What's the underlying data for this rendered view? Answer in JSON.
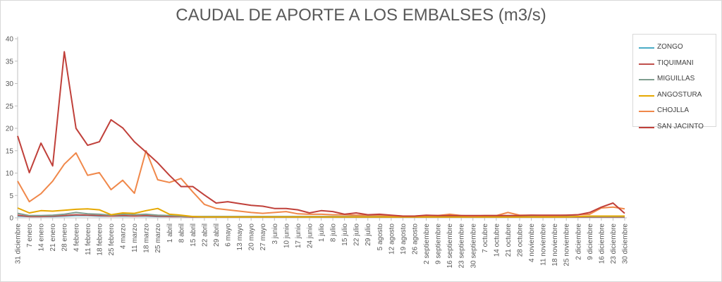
{
  "chart_data": {
    "type": "line",
    "title": "CAUDAL DE APORTE A LOS EMBALSES (m3/s)",
    "xlabel": "",
    "ylabel": "",
    "ylim": [
      0,
      40
    ],
    "y_ticks": [
      0,
      5,
      10,
      15,
      20,
      25,
      30,
      35,
      40
    ],
    "grid": false,
    "legend": "right",
    "x": [
      "31 diciembre",
      "7 enero",
      "14 enero",
      "21 enero",
      "28 enero",
      "4 febrero",
      "11 febrero",
      "18 febrero",
      "25 febrero",
      "4 marzo",
      "11 marzo",
      "18 marzo",
      "25 marzo",
      "1 abril",
      "8 abril",
      "15 abril",
      "22 abril",
      "29 abril",
      "6 mayo",
      "13 mayo",
      "20 mayo",
      "27 mayo",
      "3 junio",
      "10 junio",
      "17 junio",
      "24 junio",
      "1 julio",
      "8 julio",
      "15 julio",
      "22 julio",
      "29 julio",
      "5 agosto",
      "12 agosto",
      "19 agosto",
      "26 agosto",
      "2 septiembre",
      "9 septiembre",
      "16 septiembre",
      "23 septiembre",
      "30 septiembre",
      "7 octubre",
      "14 octubre",
      "21 octubre",
      "28 octubre",
      "4 noviembre",
      "11 noviembre",
      "18 noviembre",
      "25 noviembre",
      "2 diciembre",
      "9 diciembre",
      "16 diciembre",
      "23 diciembre",
      "30 diciembre"
    ],
    "series": [
      {
        "name": "ZONGO",
        "color": "#4bacc6",
        "values": [
          0.4,
          0.3,
          0.3,
          0.3,
          0.4,
          0.5,
          0.5,
          0.4,
          0.4,
          0.4,
          0.4,
          0.4,
          0.3,
          0.3,
          0.3,
          0.2,
          0.2,
          0.2,
          0.2,
          0.2,
          0.2,
          0.2,
          0.2,
          0.2,
          0.2,
          0.2,
          0.2,
          0.2,
          0.2,
          0.2,
          0.2,
          0.2,
          0.2,
          0.2,
          0.2,
          0.2,
          0.2,
          0.2,
          0.2,
          0.2,
          0.2,
          0.2,
          0.2,
          0.2,
          0.2,
          0.2,
          0.2,
          0.2,
          0.2,
          0.2,
          0.2,
          0.2,
          0.2
        ]
      },
      {
        "name": "TIQUIMANI",
        "color": "#c0504d",
        "values": [
          0.6,
          0.3,
          0.3,
          0.4,
          0.5,
          0.7,
          0.6,
          0.5,
          0.4,
          0.5,
          0.4,
          0.5,
          0.4,
          0.3,
          0.3,
          0.2,
          0.2,
          0.2,
          0.2,
          0.2,
          0.2,
          0.2,
          0.2,
          0.2,
          0.2,
          0.2,
          0.2,
          0.2,
          0.2,
          0.2,
          0.2,
          0.2,
          0.2,
          0.2,
          0.2,
          0.2,
          0.2,
          0.2,
          0.2,
          0.2,
          0.2,
          0.2,
          0.2,
          0.2,
          0.2,
          0.2,
          0.2,
          0.2,
          0.2,
          0.2,
          0.2,
          0.2,
          0.2
        ]
      },
      {
        "name": "MIGUILLAS",
        "color": "#7f9e8f",
        "values": [
          1.0,
          0.5,
          0.5,
          0.6,
          0.8,
          1.2,
          0.9,
          0.8,
          0.6,
          0.8,
          0.7,
          0.8,
          0.6,
          0.5,
          0.4,
          0.3,
          0.3,
          0.3,
          0.3,
          0.3,
          0.3,
          0.3,
          0.3,
          0.3,
          0.3,
          0.3,
          0.3,
          0.3,
          0.3,
          0.3,
          0.3,
          0.3,
          0.3,
          0.3,
          0.3,
          0.3,
          0.3,
          0.3,
          0.3,
          0.3,
          0.3,
          0.3,
          0.3,
          0.3,
          0.3,
          0.3,
          0.3,
          0.3,
          0.3,
          0.3,
          0.3,
          0.3,
          0.3
        ]
      },
      {
        "name": "ANGOSTURA",
        "color": "#e6a800",
        "values": [
          2.2,
          1.1,
          1.6,
          1.5,
          1.7,
          1.9,
          2.0,
          1.8,
          0.7,
          1.1,
          1.0,
          1.6,
          2.1,
          0.8,
          0.6,
          0.3,
          0.2,
          0.2,
          0.2,
          0.2,
          0.2,
          0.2,
          0.2,
          0.2,
          0.2,
          0.2,
          0.2,
          0.2,
          0.2,
          0.2,
          0.2,
          0.2,
          0.2,
          0.2,
          0.2,
          0.2,
          0.2,
          0.2,
          0.2,
          0.2,
          0.2,
          0.2,
          0.2,
          0.2,
          0.2,
          0.2,
          0.2,
          0.2,
          0.3,
          0.4,
          0.4,
          0.4,
          0.4
        ]
      },
      {
        "name": "CHOJLLA",
        "color": "#f0884a",
        "values": [
          8.2,
          3.6,
          5.4,
          8.2,
          12.0,
          14.5,
          9.5,
          10.1,
          6.3,
          8.4,
          5.5,
          15.0,
          8.5,
          7.9,
          8.8,
          5.8,
          3.0,
          2.1,
          1.8,
          1.5,
          1.2,
          1.0,
          1.2,
          1.4,
          0.9,
          0.8,
          0.8,
          0.7,
          0.7,
          0.6,
          0.6,
          0.6,
          0.5,
          0.4,
          0.4,
          0.5,
          0.5,
          0.8,
          0.5,
          0.4,
          0.5,
          0.5,
          1.2,
          0.6,
          0.6,
          0.5,
          0.5,
          0.6,
          0.7,
          0.8,
          2.2,
          2.4,
          2.0
        ]
      },
      {
        "name": "SAN JACINTO",
        "color": "#c0403a",
        "values": [
          18.3,
          10.1,
          16.7,
          11.6,
          37.1,
          20.0,
          16.2,
          17.0,
          21.9,
          20.1,
          17.0,
          14.7,
          12.3,
          9.5,
          7.0,
          7.0,
          5.1,
          3.3,
          3.6,
          3.2,
          2.8,
          2.6,
          2.1,
          2.1,
          1.8,
          1.1,
          1.6,
          1.4,
          0.8,
          1.1,
          0.7,
          0.8,
          0.6,
          0.4,
          0.4,
          0.6,
          0.5,
          0.5,
          0.5,
          0.5,
          0.5,
          0.5,
          0.5,
          0.5,
          0.6,
          0.6,
          0.6,
          0.6,
          0.7,
          1.2,
          2.4,
          3.3,
          1.0
        ]
      }
    ]
  }
}
